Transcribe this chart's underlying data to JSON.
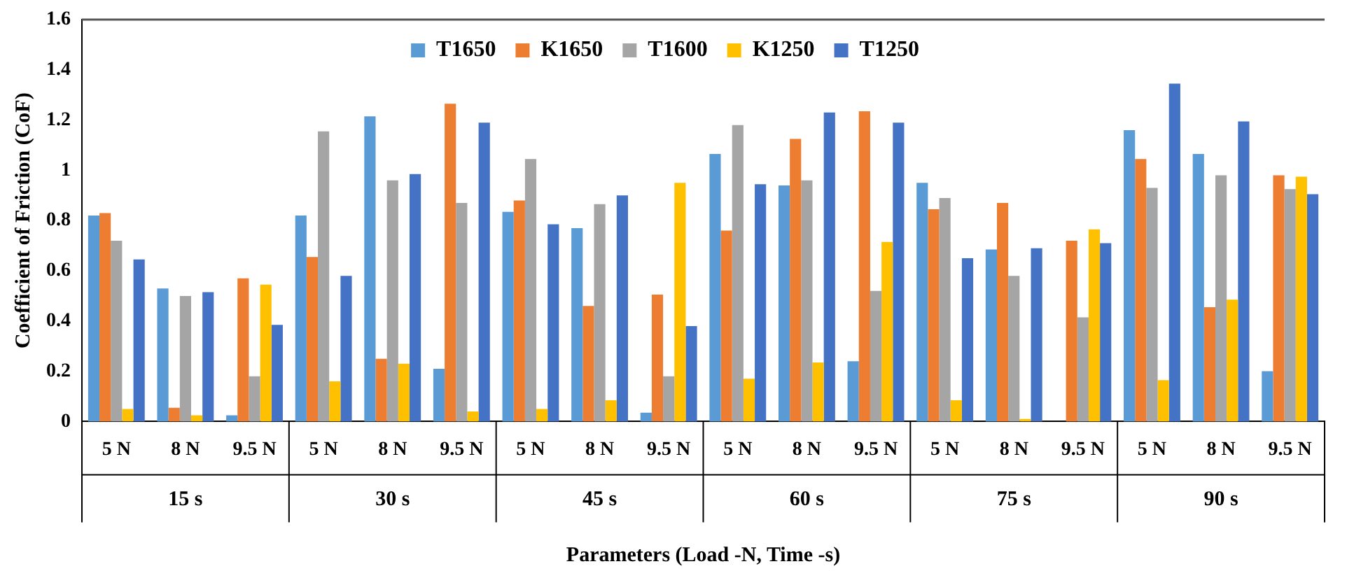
{
  "chart_data": {
    "type": "bar",
    "xlabel": "Parameters (Load -N, Time -s)",
    "ylabel": "Coefficient of Friction (CoF)",
    "categories": [
      "5 N",
      "8 N",
      "9.5 N",
      "5 N",
      "8 N",
      "9.5 N",
      "5 N",
      "8 N",
      "9.5 N",
      "5 N",
      "8 N",
      "9.5 N",
      "5 N",
      "8 N",
      "9.5 N",
      "5 N",
      "8 N",
      "9.5 N"
    ],
    "annotations": [
      "15 s",
      "30 s",
      "45 s",
      "60 s",
      "75 s",
      "90 s"
    ],
    "series": [
      {
        "name": "T1650",
        "color": "#5b9bd5",
        "values": [
          0.82,
          0.53,
          0.025,
          0.82,
          1.215,
          0.21,
          0.835,
          0.77,
          0.035,
          1.065,
          0.94,
          0.24,
          0.95,
          0.685,
          0,
          1.16,
          1.065,
          0.2
        ]
      },
      {
        "name": "K1650",
        "color": "#ed7d31",
        "values": [
          0.83,
          0.055,
          0.57,
          0.655,
          0.25,
          1.265,
          0.88,
          0.46,
          0.505,
          0.76,
          1.125,
          1.235,
          0.845,
          0.87,
          0.72,
          1.045,
          0.455,
          0.98
        ]
      },
      {
        "name": "T1600",
        "color": "#a5a5a5",
        "values": [
          0.72,
          0.5,
          0.18,
          1.155,
          0.96,
          0.87,
          1.045,
          0.865,
          0.18,
          1.18,
          0.96,
          0.52,
          0.89,
          0.58,
          0.415,
          0.93,
          0.98,
          0.925
        ]
      },
      {
        "name": "K1250",
        "color": "#ffc000",
        "values": [
          0.05,
          0.025,
          0.545,
          0.16,
          0.23,
          0.04,
          0.05,
          0.085,
          0.95,
          0.17,
          0.235,
          0.715,
          0.085,
          0.01,
          0.765,
          0.165,
          0.485,
          0.975
        ]
      },
      {
        "name": "T1250",
        "color": "#4472c4",
        "values": [
          0.645,
          0.515,
          0.385,
          0.58,
          0.985,
          1.19,
          0.785,
          0.9,
          0.38,
          0.945,
          1.23,
          1.19,
          0.65,
          0.69,
          0.71,
          1.345,
          1.195,
          0.905
        ]
      }
    ],
    "ylim": [
      0,
      1.6
    ],
    "yticks": [
      0,
      0.2,
      0.4,
      0.6,
      0.8,
      1,
      1.2,
      1.4,
      1.6
    ],
    "grid": false,
    "legend": "top left"
  }
}
